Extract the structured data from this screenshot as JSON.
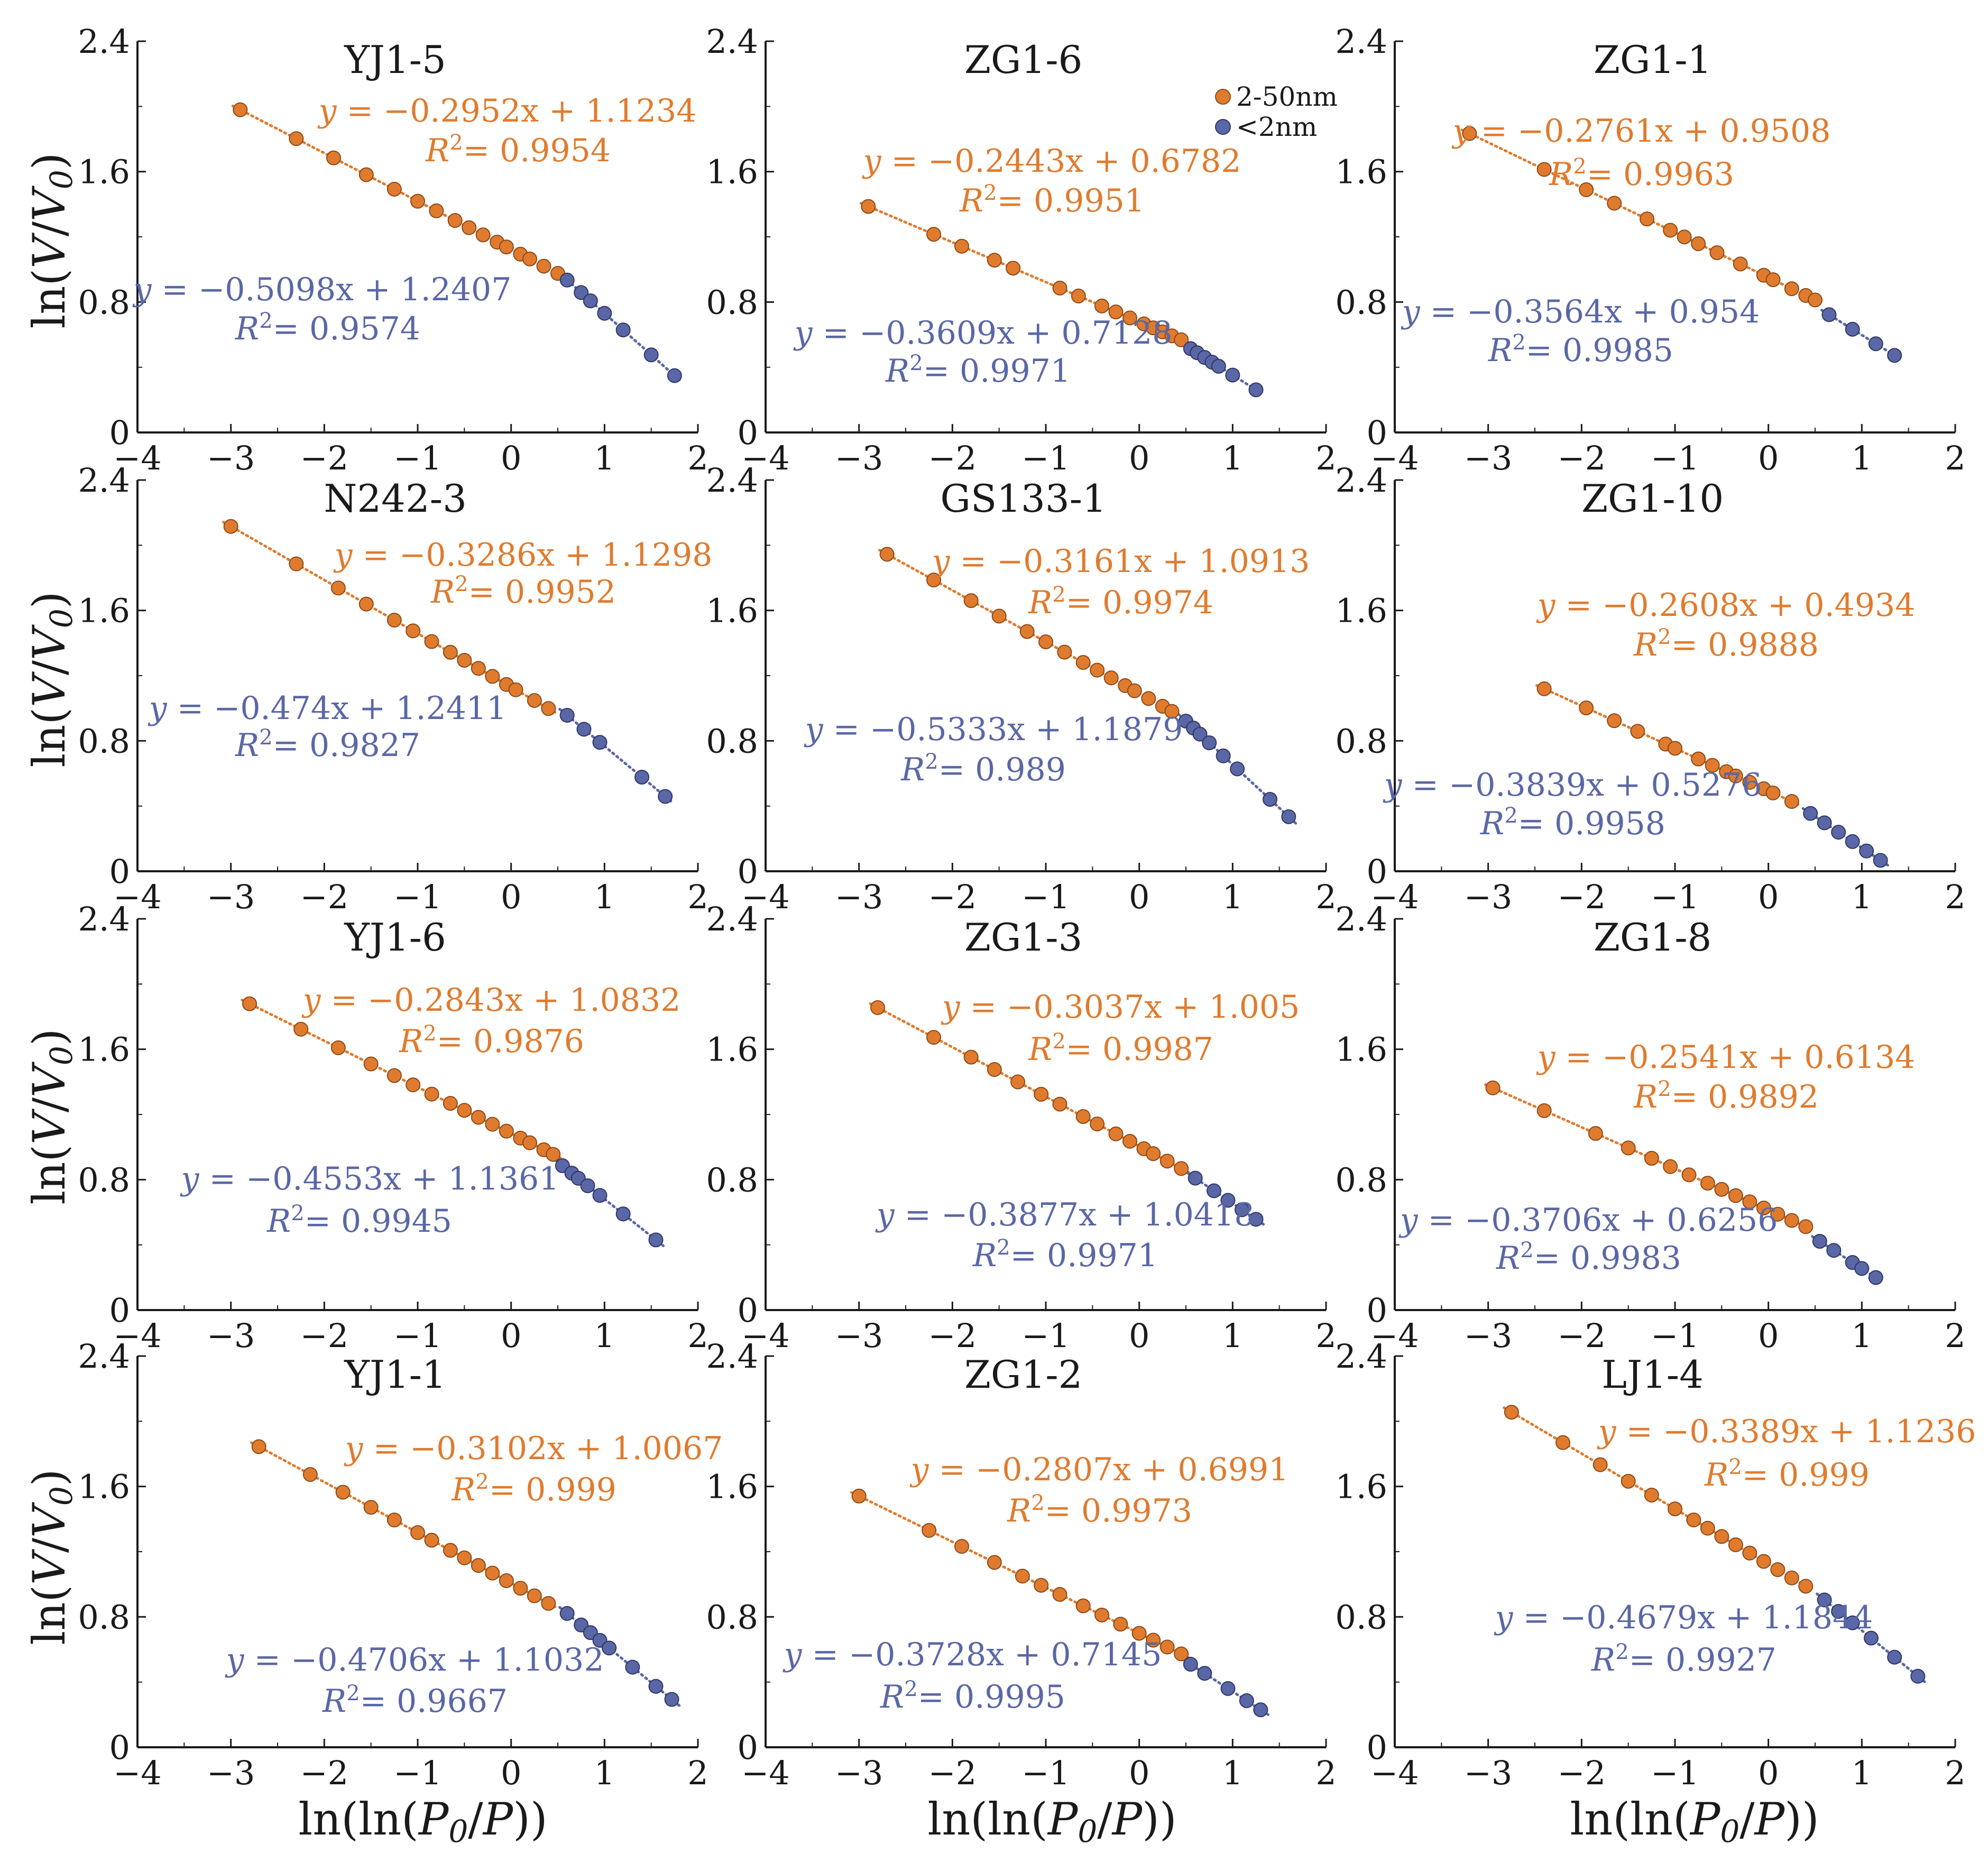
{
  "colors": {
    "meso": "#e07b2e",
    "micro": "#5a67a6",
    "axis": "#1a1a1a"
  },
  "legend": {
    "meso_label": "2-50nm",
    "micro_label": "<2nm"
  },
  "axes": {
    "x_label_prefix": "ln(ln(",
    "x_label_var": "P",
    "x_label_sub": "0",
    "x_label_mid": "/",
    "x_label_var2": "P",
    "x_label_suffix": "))",
    "y_label_prefix": "ln(",
    "y_label_var": "V",
    "y_label_mid": "/",
    "y_label_var2": "V",
    "y_label_sub": "0",
    "y_label_suffix": ")",
    "x_ticks": [
      "−4",
      "−3",
      "−2",
      "−1",
      "0",
      "1",
      "2"
    ],
    "y_ticks": [
      "0",
      "0.8",
      "1.6",
      "2.4"
    ]
  },
  "chart_data": {
    "type": "scatter",
    "xlim": [
      -4,
      2
    ],
    "ylim": [
      0,
      2.4
    ],
    "xlabel": "ln(ln(P0/P))",
    "ylabel": "ln(V/V0)",
    "panels": [
      {
        "title": "YJ1-5",
        "meso": {
          "eq": "y = −0.2952x + 1.1234",
          "r2": "0.9954",
          "slope": -0.2952,
          "intercept": 1.1234,
          "x": [
            -2.9,
            -2.3,
            -1.9,
            -1.55,
            -1.25,
            -1.0,
            -0.8,
            -0.6,
            -0.45,
            -0.3,
            -0.15,
            -0.05,
            0.1,
            0.2,
            0.35,
            0.5
          ]
        },
        "micro": {
          "eq": "y = −0.5098x + 1.2407",
          "r2": "0.9574",
          "slope": -0.5098,
          "intercept": 1.2407,
          "x": [
            0.6,
            0.75,
            0.85,
            1.0,
            1.2,
            1.5,
            1.75
          ]
        }
      },
      {
        "title": "ZG1-6",
        "meso": {
          "eq": "y = −0.2443x + 0.6782",
          "r2": "0.9951",
          "slope": -0.2443,
          "intercept": 0.6782,
          "x": [
            -2.9,
            -2.2,
            -1.9,
            -1.55,
            -1.35,
            -0.85,
            -0.65,
            -0.4,
            -0.25,
            -0.1,
            0.05,
            0.15,
            0.25,
            0.35,
            0.45
          ]
        },
        "micro": {
          "eq": "y = −0.3609x + 0.7128",
          "r2": "0.9971",
          "slope": -0.3609,
          "intercept": 0.7128,
          "x": [
            0.55,
            0.62,
            0.7,
            0.78,
            0.85,
            1.0,
            1.25
          ]
        }
      },
      {
        "title": "ZG1-1",
        "meso": {
          "eq": "y = −0.2761x + 0.9508",
          "r2": "0.9963",
          "slope": -0.2761,
          "intercept": 0.9508,
          "x": [
            -3.2,
            -2.4,
            -1.95,
            -1.65,
            -1.3,
            -1.05,
            -0.9,
            -0.75,
            -0.55,
            -0.3,
            -0.05,
            0.05,
            0.25,
            0.4,
            0.5
          ]
        },
        "micro": {
          "eq": "y = −0.3564x + 0.954",
          "r2": "0.9985",
          "slope": -0.3564,
          "intercept": 0.954,
          "x": [
            0.65,
            0.9,
            1.15,
            1.35
          ]
        }
      },
      {
        "title": "N242-3",
        "meso": {
          "eq": "y = −0.3286x + 1.1298",
          "r2": "0.9952",
          "slope": -0.3286,
          "intercept": 1.1298,
          "x": [
            -3.0,
            -2.3,
            -1.85,
            -1.55,
            -1.25,
            -1.05,
            -0.85,
            -0.65,
            -0.5,
            -0.35,
            -0.2,
            -0.05,
            0.05,
            0.25,
            0.4
          ]
        },
        "micro": {
          "eq": "y = −0.474x + 1.2411",
          "r2": "0.9827",
          "slope": -0.474,
          "intercept": 1.2411,
          "x": [
            0.6,
            0.78,
            0.95,
            1.4,
            1.65
          ]
        }
      },
      {
        "title": "GS133-1",
        "meso": {
          "eq": "y = −0.3161x + 1.0913",
          "r2": "0.9974",
          "slope": -0.3161,
          "intercept": 1.0913,
          "x": [
            -2.7,
            -2.2,
            -1.8,
            -1.5,
            -1.2,
            -1.0,
            -0.8,
            -0.6,
            -0.45,
            -0.3,
            -0.15,
            -0.05,
            0.1,
            0.25,
            0.35
          ]
        },
        "micro": {
          "eq": "y = −0.5333x + 1.1879",
          "r2": "0.989",
          "slope": -0.5333,
          "intercept": 1.1879,
          "x": [
            0.5,
            0.58,
            0.65,
            0.75,
            0.9,
            1.05,
            1.4,
            1.6
          ]
        }
      },
      {
        "title": "ZG1-10",
        "meso": {
          "eq": "y = −0.2608x + 0.4934",
          "r2": "0.9888",
          "slope": -0.2608,
          "intercept": 0.4934,
          "x": [
            -2.4,
            -1.95,
            -1.65,
            -1.4,
            -1.1,
            -1.0,
            -0.75,
            -0.6,
            -0.45,
            -0.35,
            -0.2,
            -0.05,
            0.05,
            0.25
          ]
        },
        "micro": {
          "eq": "y = −0.3839x + 0.5276",
          "r2": "0.9958",
          "slope": -0.3839,
          "intercept": 0.5276,
          "x": [
            0.45,
            0.6,
            0.75,
            0.9,
            1.05,
            1.2
          ]
        }
      },
      {
        "title": "YJ1-6",
        "meso": {
          "eq": "y = −0.2843x + 1.0832",
          "r2": "0.9876",
          "slope": -0.2843,
          "intercept": 1.0832,
          "x": [
            -2.8,
            -2.25,
            -1.85,
            -1.5,
            -1.25,
            -1.05,
            -0.85,
            -0.65,
            -0.5,
            -0.35,
            -0.2,
            -0.05,
            0.1,
            0.2,
            0.35,
            0.45
          ]
        },
        "micro": {
          "eq": "y = −0.4553x + 1.1361",
          "r2": "0.9945",
          "slope": -0.4553,
          "intercept": 1.1361,
          "x": [
            0.55,
            0.65,
            0.72,
            0.82,
            0.95,
            1.2,
            1.55
          ]
        }
      },
      {
        "title": "ZG1-3",
        "meso": {
          "eq": "y = −0.3037x + 1.005",
          "r2": "0.9987",
          "slope": -0.3037,
          "intercept": 1.005,
          "x": [
            -2.8,
            -2.2,
            -1.8,
            -1.55,
            -1.3,
            -1.05,
            -0.85,
            -0.6,
            -0.45,
            -0.25,
            -0.1,
            0.05,
            0.15,
            0.3,
            0.45
          ]
        },
        "micro": {
          "eq": "y = −0.3877x + 1.0418",
          "r2": "0.9971",
          "slope": -0.3877,
          "intercept": 1.0418,
          "x": [
            0.6,
            0.8,
            0.95,
            1.1,
            1.25
          ]
        }
      },
      {
        "title": "ZG1-8",
        "meso": {
          "eq": "y = −0.2541x + 0.6134",
          "r2": "0.9892",
          "slope": -0.2541,
          "intercept": 0.6134,
          "x": [
            -2.95,
            -2.4,
            -1.85,
            -1.5,
            -1.25,
            -1.05,
            -0.85,
            -0.65,
            -0.5,
            -0.35,
            -0.2,
            -0.05,
            0.1,
            0.25,
            0.4
          ]
        },
        "micro": {
          "eq": "y = −0.3706x + 0.6256",
          "r2": "0.9983",
          "slope": -0.3706,
          "intercept": 0.6256,
          "x": [
            0.55,
            0.7,
            0.9,
            1.0,
            1.15
          ]
        }
      },
      {
        "title": "YJ1-1",
        "meso": {
          "eq": "y = −0.3102x + 1.0067",
          "r2": "0.999",
          "slope": -0.3102,
          "intercept": 1.0067,
          "x": [
            -2.7,
            -2.15,
            -1.8,
            -1.5,
            -1.25,
            -1.0,
            -0.85,
            -0.65,
            -0.5,
            -0.35,
            -0.2,
            -0.05,
            0.1,
            0.25,
            0.4
          ]
        },
        "micro": {
          "eq": "y = −0.4706x + 1.1032",
          "r2": "0.9667",
          "slope": -0.4706,
          "intercept": 1.1032,
          "x": [
            0.6,
            0.75,
            0.85,
            0.95,
            1.05,
            1.3,
            1.55,
            1.72
          ]
        }
      },
      {
        "title": "ZG1-2",
        "meso": {
          "eq": "y = −0.2807x + 0.6991",
          "r2": "0.9973",
          "slope": -0.2807,
          "intercept": 0.6991,
          "x": [
            -3.0,
            -2.25,
            -1.9,
            -1.55,
            -1.25,
            -1.05,
            -0.85,
            -0.6,
            -0.4,
            -0.2,
            0.0,
            0.15,
            0.3,
            0.45
          ]
        },
        "micro": {
          "eq": "y = −0.3728x + 0.7145",
          "r2": "0.9995",
          "slope": -0.3728,
          "intercept": 0.7145,
          "x": [
            0.55,
            0.7,
            0.95,
            1.15,
            1.3
          ]
        }
      },
      {
        "title": "LJ1-4",
        "meso": {
          "eq": "y = −0.3389x + 1.1236",
          "r2": "0.999",
          "slope": -0.3389,
          "intercept": 1.1236,
          "x": [
            -2.75,
            -2.2,
            -1.8,
            -1.5,
            -1.25,
            -1.0,
            -0.8,
            -0.65,
            -0.5,
            -0.35,
            -0.2,
            -0.05,
            0.1,
            0.25,
            0.4
          ]
        },
        "micro": {
          "eq": "y = −0.4679x + 1.1844",
          "r2": "0.9927",
          "slope": -0.4679,
          "intercept": 1.1844,
          "x": [
            0.6,
            0.75,
            0.9,
            1.1,
            1.35,
            1.6
          ]
        }
      }
    ]
  }
}
